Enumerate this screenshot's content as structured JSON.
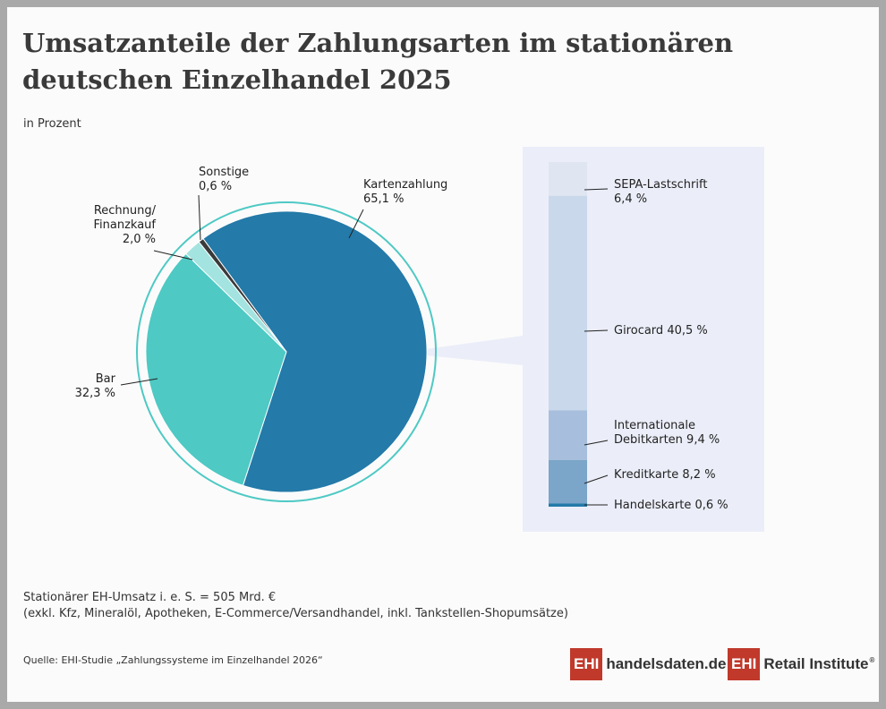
{
  "title": "Umsatzanteile der Zahlungsarten im stationären deutschen Einzelhandel 2025",
  "subtitle": "in Prozent",
  "note_line1": "Stationärer EH-Umsatz i. e. S. = 505 Mrd. €",
  "note_line2": "(exkl. Kfz, Mineralöl, Apotheken, E-Commerce/Versandhandel, inkl. Tankstellen-Shopumsätze)",
  "source": "Quelle: EHI-Studie „Zahlungssysteme im Einzelhandel 2026“",
  "logo1": {
    "box": "EHI",
    "text": "handelsdaten.de"
  },
  "logo2": {
    "box": "EHI",
    "text": "Retail Institute",
    "reg": "®"
  },
  "colors": {
    "kartenzahlung": "#247aa8",
    "bar": "#4ec9c4",
    "rechnung": "#a3e3e0",
    "sonstige": "#3a3a3a",
    "ring": "#4ec9c4",
    "panel": "#ebeef9",
    "sepa": "#dfe5f1",
    "girocard": "#c9d8ea",
    "intl": "#a7bfdc",
    "kredit": "#7ba5c9",
    "handelskarte": "#247aa8"
  },
  "chart_data": [
    {
      "type": "pie",
      "slices": [
        {
          "name": "Kartenzahlung",
          "value": 65.1,
          "label_name": "Kartenzahlung",
          "label_value": "65,1 %"
        },
        {
          "name": "Bar",
          "value": 32.3,
          "label_name": "Bar",
          "label_value": "32,3 %"
        },
        {
          "name": "Rechnung/ Finanzkauf",
          "value": 2.0,
          "label_name1": "Rechnung/",
          "label_name2": "Finanzkauf",
          "label_value": "2,0 %"
        },
        {
          "name": "Sonstige",
          "value": 0.6,
          "label_name": "Sonstige",
          "label_value": "0,6 %"
        }
      ]
    },
    {
      "type": "bar",
      "stacked": true,
      "categories": [
        "SEPA-Lastschrift",
        "Girocard",
        "Internationale Debitkarten",
        "Kreditkarte",
        "Handelskarte"
      ],
      "values": [
        6.4,
        40.5,
        9.4,
        8.2,
        0.6
      ],
      "labels": [
        {
          "line1": "SEPA-Lastschrift",
          "line2": "6,4 %"
        },
        {
          "line1": "Girocard 40,5 %"
        },
        {
          "line1": "Internationale",
          "line2": "Debitkarten 9,4 %"
        },
        {
          "line1": "Kreditkarte  8,2 %"
        },
        {
          "line1": "Handelskarte 0,6 %"
        }
      ]
    }
  ]
}
